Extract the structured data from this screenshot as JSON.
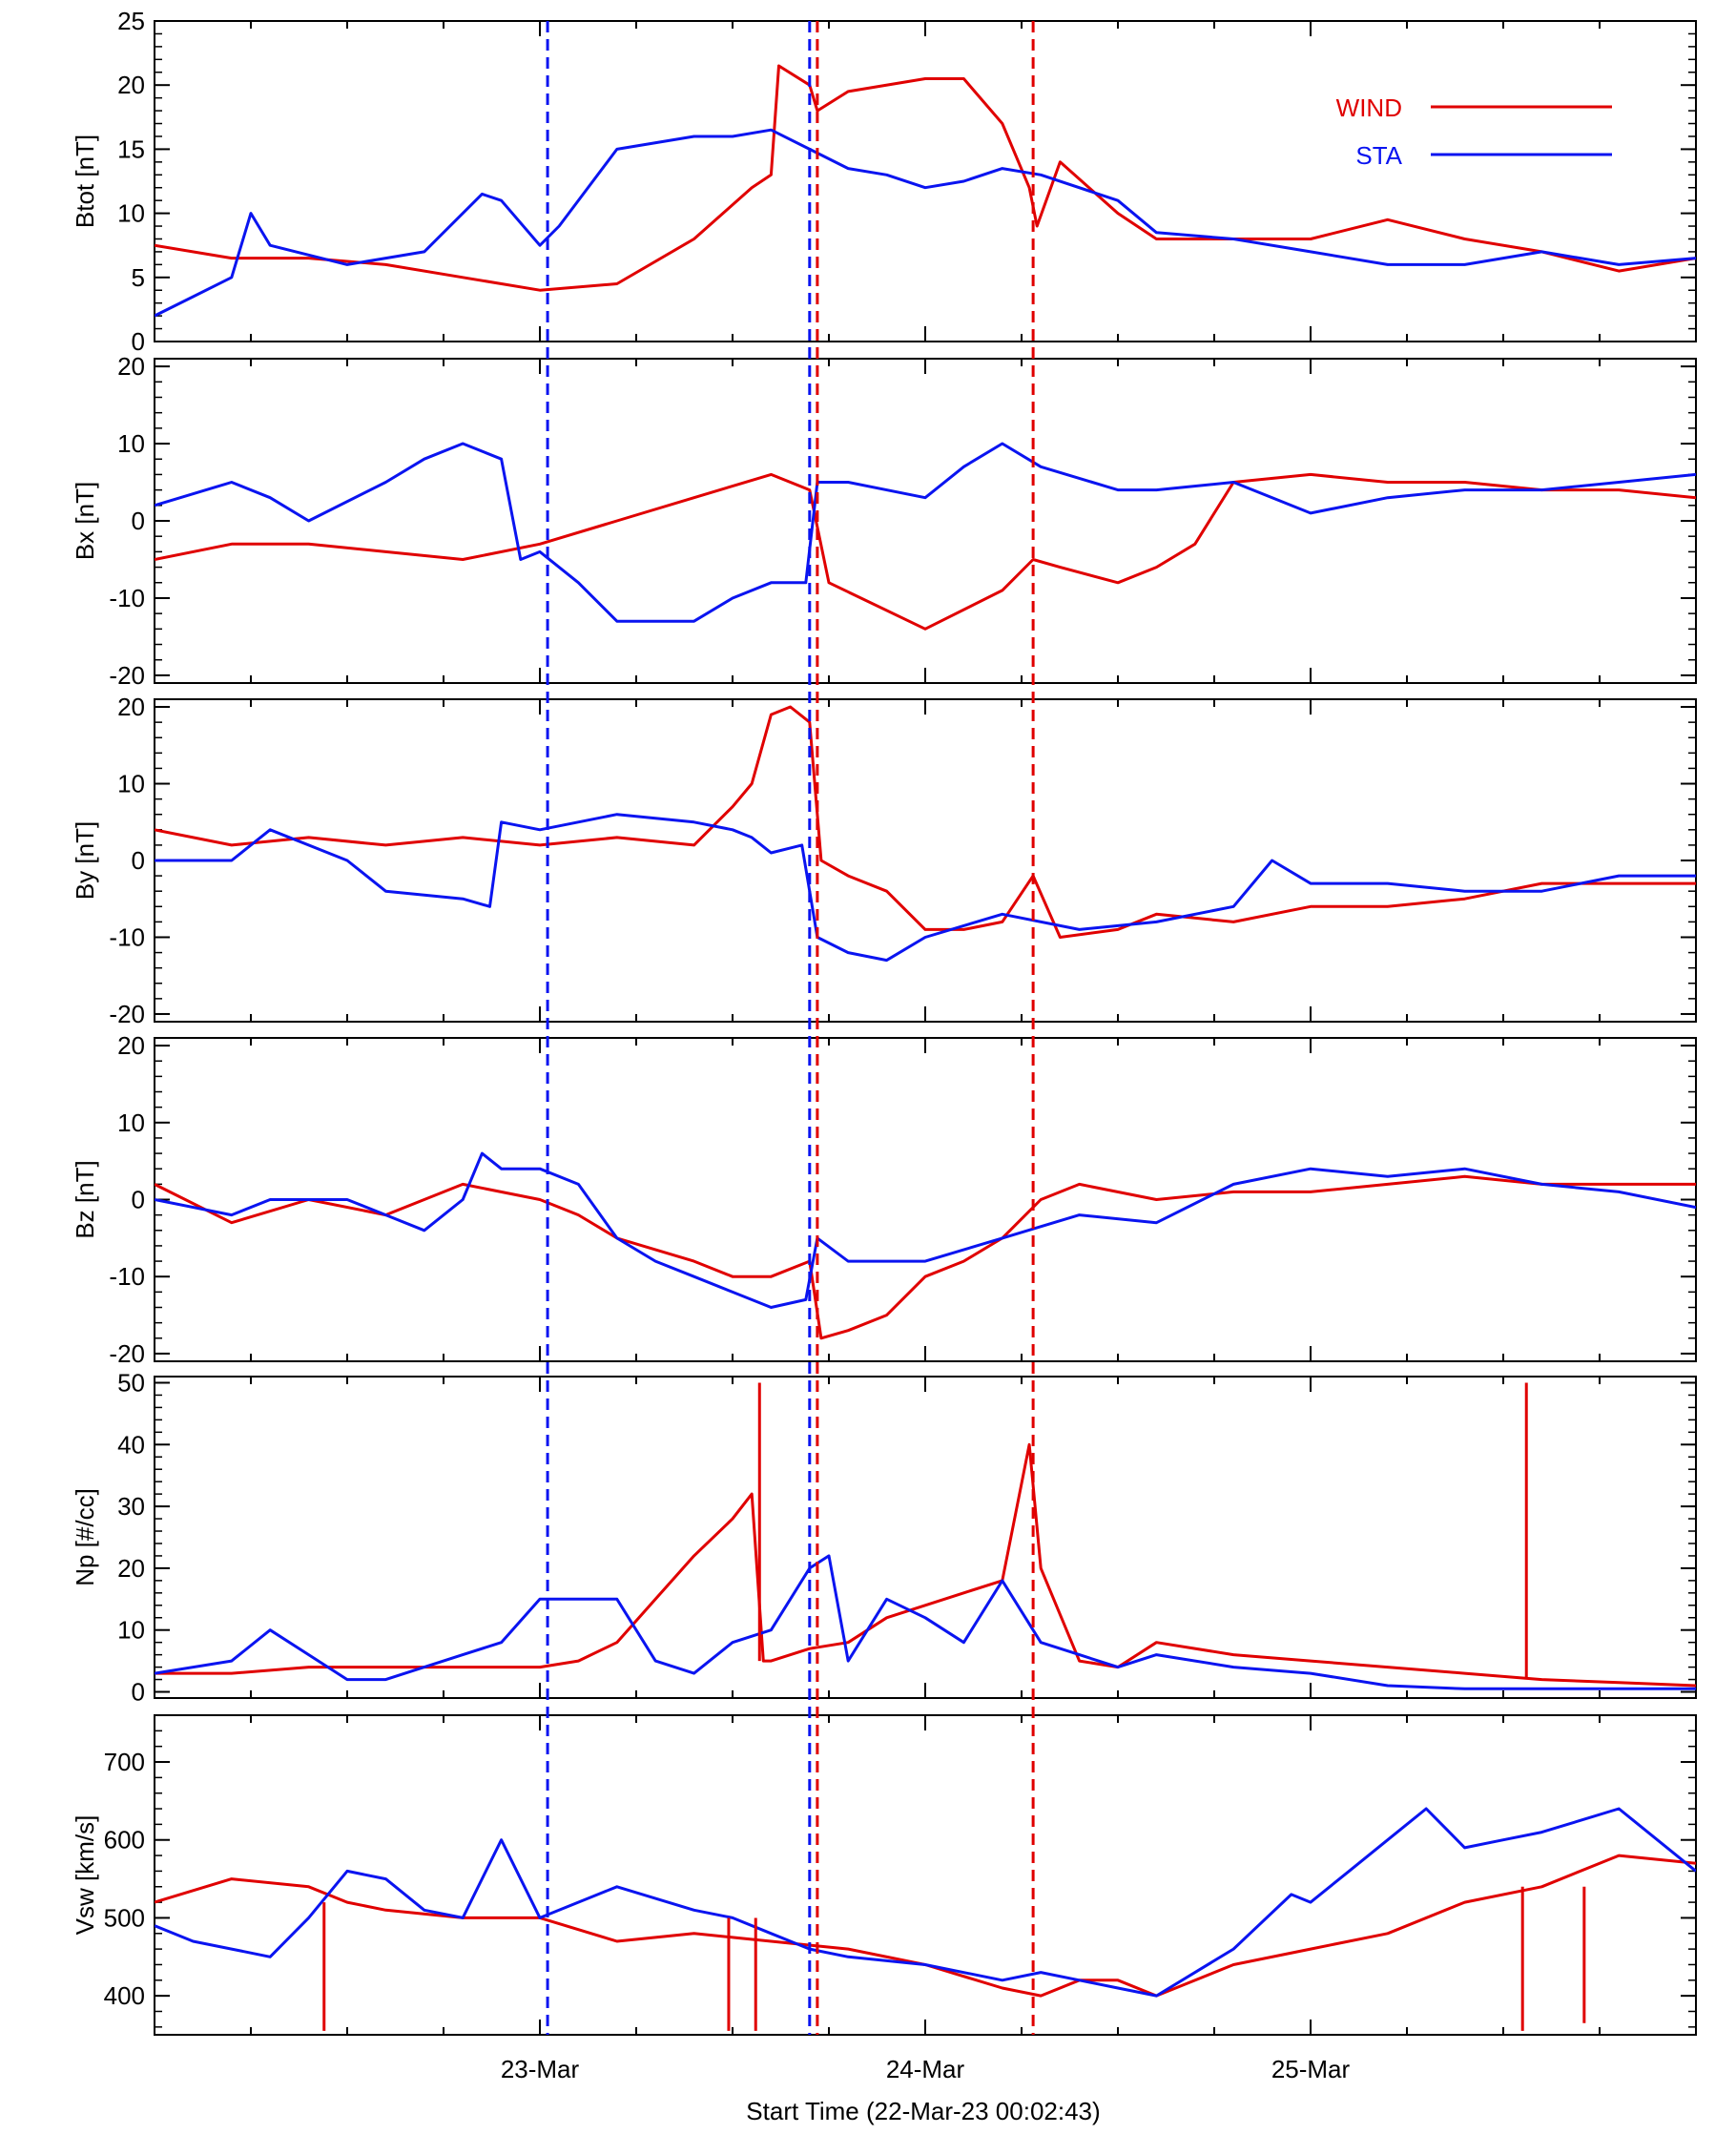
{
  "chart_data": {
    "type": "line",
    "xlabel": "Start Time (22-Mar-23 00:02:43)",
    "x_range_days": [
      0,
      4
    ],
    "x_ticks": [
      {
        "day": 1,
        "label": "23-Mar"
      },
      {
        "day": 2,
        "label": "24-Mar"
      },
      {
        "day": 3,
        "label": "25-Mar"
      }
    ],
    "colors": {
      "WIND": "#e00000",
      "STA": "#0a14f0"
    },
    "legend": {
      "placement": "top-right",
      "entries": [
        {
          "name": "WIND",
          "color": "#e00000"
        },
        {
          "name": "STA",
          "color": "#0a14f0"
        }
      ]
    },
    "boundaries": [
      {
        "day": 1.02,
        "color": "#0a14f0"
      },
      {
        "day": 1.7,
        "color": "#0a14f0"
      },
      {
        "day": 1.72,
        "color": "#e00000"
      },
      {
        "day": 2.28,
        "color": "#e00000"
      }
    ],
    "panels": [
      {
        "id": "btot",
        "ylabel": "Btot [nT]",
        "ylim": [
          0,
          25
        ],
        "yticks": [
          0,
          5,
          10,
          15,
          20,
          25
        ],
        "series": [
          {
            "name": "WIND",
            "x": [
              0,
              0.2,
              0.4,
              0.6,
              0.8,
              1.0,
              1.2,
              1.4,
              1.55,
              1.6,
              1.62,
              1.7,
              1.72,
              1.8,
              2.0,
              2.1,
              2.2,
              2.27,
              2.29,
              2.35,
              2.5,
              2.6,
              2.8,
              3.0,
              3.2,
              3.4,
              3.6,
              3.8,
              4.0
            ],
            "y": [
              7.5,
              6.5,
              6.5,
              6,
              5,
              4,
              4.5,
              8,
              12,
              13,
              21.5,
              20,
              18,
              19.5,
              20.5,
              20.5,
              17,
              12,
              9,
              14,
              10,
              8,
              8,
              8,
              9.5,
              8,
              7,
              5.5,
              6.5
            ]
          },
          {
            "name": "STA",
            "x": [
              0,
              0.1,
              0.2,
              0.25,
              0.3,
              0.5,
              0.7,
              0.85,
              0.9,
              1.0,
              1.05,
              1.2,
              1.4,
              1.5,
              1.6,
              1.7,
              1.8,
              1.9,
              2.0,
              2.1,
              2.2,
              2.3,
              2.5,
              2.6,
              2.8,
              3.0,
              3.2,
              3.4,
              3.6,
              3.8,
              4.0
            ],
            "y": [
              2,
              3.5,
              5,
              10,
              7.5,
              6,
              7,
              11.5,
              11,
              7.5,
              9,
              15,
              16,
              16,
              16.5,
              15,
              13.5,
              13,
              12,
              12.5,
              13.5,
              13,
              11,
              8.5,
              8,
              7,
              6,
              6,
              7,
              6,
              6.5
            ]
          }
        ]
      },
      {
        "id": "bx",
        "ylabel": "Bx [nT]",
        "ylim": [
          -21,
          21
        ],
        "yticks": [
          -20,
          -10,
          0,
          10,
          20
        ],
        "series": [
          {
            "name": "WIND",
            "x": [
              0,
              0.2,
              0.4,
              0.6,
              0.8,
              1.0,
              1.2,
              1.4,
              1.6,
              1.7,
              1.75,
              2.0,
              2.2,
              2.28,
              2.35,
              2.5,
              2.6,
              2.7,
              2.8,
              3.0,
              3.2,
              3.4,
              3.6,
              3.8,
              4.0
            ],
            "y": [
              -5,
              -3,
              -3,
              -4,
              -5,
              -3,
              0,
              3,
              6,
              4,
              -8,
              -14,
              -9,
              -5,
              -6,
              -8,
              -6,
              -3,
              5,
              6,
              5,
              5,
              4,
              4,
              3
            ]
          },
          {
            "name": "STA",
            "x": [
              0,
              0.2,
              0.3,
              0.4,
              0.6,
              0.7,
              0.8,
              0.9,
              0.95,
              1.0,
              1.1,
              1.2,
              1.4,
              1.5,
              1.6,
              1.69,
              1.72,
              1.8,
              2.0,
              2.1,
              2.2,
              2.3,
              2.5,
              2.6,
              2.8,
              3.0,
              3.2,
              3.4,
              3.6,
              3.8,
              4.0
            ],
            "y": [
              2,
              5,
              3,
              0,
              5,
              8,
              10,
              8,
              -5,
              -4,
              -8,
              -13,
              -13,
              -10,
              -8,
              -8,
              5,
              5,
              3,
              7,
              10,
              7,
              4,
              4,
              5,
              1,
              3,
              4,
              4,
              5,
              6
            ]
          }
        ]
      },
      {
        "id": "by",
        "ylabel": "By [nT]",
        "ylim": [
          -21,
          21
        ],
        "yticks": [
          -20,
          -10,
          0,
          10,
          20
        ],
        "series": [
          {
            "name": "WIND",
            "x": [
              0,
              0.2,
              0.4,
              0.6,
              0.8,
              1.0,
              1.2,
              1.4,
              1.5,
              1.55,
              1.6,
              1.65,
              1.7,
              1.73,
              1.8,
              1.9,
              2.0,
              2.1,
              2.2,
              2.28,
              2.35,
              2.5,
              2.6,
              2.8,
              3.0,
              3.2,
              3.4,
              3.6,
              3.8,
              4.0
            ],
            "y": [
              4,
              2,
              3,
              2,
              3,
              2,
              3,
              2,
              7,
              10,
              19,
              20,
              18,
              0,
              -2,
              -4,
              -9,
              -9,
              -8,
              -2,
              -10,
              -9,
              -7,
              -8,
              -6,
              -6,
              -5,
              -3,
              -3,
              -3
            ]
          },
          {
            "name": "STA",
            "x": [
              0,
              0.2,
              0.3,
              0.5,
              0.6,
              0.8,
              0.87,
              0.9,
              1.0,
              1.2,
              1.4,
              1.5,
              1.55,
              1.6,
              1.68,
              1.72,
              1.8,
              1.9,
              2.0,
              2.2,
              2.4,
              2.6,
              2.8,
              2.9,
              3.0,
              3.2,
              3.4,
              3.6,
              3.8,
              4.0
            ],
            "y": [
              0,
              0,
              4,
              0,
              -4,
              -5,
              -6,
              5,
              4,
              6,
              5,
              4,
              3,
              1,
              2,
              -10,
              -12,
              -13,
              -10,
              -7,
              -9,
              -8,
              -6,
              0,
              -3,
              -3,
              -4,
              -4,
              -2,
              -2
            ]
          }
        ]
      },
      {
        "id": "bz",
        "ylabel": "Bz [nT]",
        "ylim": [
          -21,
          21
        ],
        "yticks": [
          -20,
          -10,
          0,
          10,
          20
        ],
        "series": [
          {
            "name": "WIND",
            "x": [
              0,
              0.2,
              0.4,
              0.6,
              0.8,
              1.0,
              1.1,
              1.2,
              1.4,
              1.5,
              1.6,
              1.7,
              1.73,
              1.8,
              1.9,
              2.0,
              2.1,
              2.2,
              2.3,
              2.4,
              2.6,
              2.8,
              3.0,
              3.2,
              3.4,
              3.6,
              3.8,
              4.0
            ],
            "y": [
              2,
              -3,
              0,
              -2,
              2,
              0,
              -2,
              -5,
              -8,
              -10,
              -10,
              -8,
              -18,
              -17,
              -15,
              -10,
              -8,
              -5,
              0,
              2,
              0,
              1,
              1,
              2,
              3,
              2,
              2,
              2
            ]
          },
          {
            "name": "STA",
            "x": [
              0,
              0.2,
              0.3,
              0.5,
              0.6,
              0.7,
              0.8,
              0.85,
              0.9,
              1.0,
              1.1,
              1.2,
              1.3,
              1.4,
              1.5,
              1.6,
              1.69,
              1.72,
              1.8,
              2.0,
              2.2,
              2.4,
              2.6,
              2.8,
              3.0,
              3.2,
              3.4,
              3.6,
              3.8,
              4.0
            ],
            "y": [
              0,
              -2,
              0,
              0,
              -2,
              -4,
              0,
              6,
              4,
              4,
              2,
              -5,
              -8,
              -10,
              -12,
              -14,
              -13,
              -5,
              -8,
              -8,
              -5,
              -2,
              -3,
              2,
              4,
              3,
              4,
              2,
              1,
              -1
            ]
          }
        ]
      },
      {
        "id": "np",
        "ylabel": "Np [#/cc]",
        "ylim": [
          -1,
          51
        ],
        "yticks": [
          0,
          10,
          20,
          30,
          40,
          50
        ],
        "series": [
          {
            "name": "WIND",
            "x": [
              0,
              0.2,
              0.4,
              0.6,
              0.8,
              1.0,
              1.1,
              1.2,
              1.3,
              1.4,
              1.5,
              1.55,
              1.58,
              1.6,
              1.7,
              1.8,
              1.9,
              2.0,
              2.1,
              2.2,
              2.27,
              2.3,
              2.4,
              2.5,
              2.6,
              2.8,
              3.0,
              3.2,
              3.4,
              3.6,
              3.8,
              4.0
            ],
            "y": [
              3,
              3,
              4,
              4,
              4,
              4,
              5,
              8,
              15,
              22,
              28,
              32,
              5,
              5,
              7,
              8,
              12,
              14,
              16,
              18,
              40,
              20,
              5,
              4,
              8,
              6,
              5,
              4,
              3,
              2,
              1.5,
              1
            ]
          },
          {
            "name": "STA",
            "x": [
              0,
              0.2,
              0.3,
              0.4,
              0.5,
              0.6,
              0.7,
              0.8,
              0.9,
              1.0,
              1.2,
              1.3,
              1.4,
              1.5,
              1.6,
              1.7,
              1.75,
              1.8,
              1.9,
              2.0,
              2.1,
              2.2,
              2.3,
              2.4,
              2.5,
              2.6,
              2.8,
              3.0,
              3.2,
              3.4,
              3.6,
              3.8,
              4.0
            ],
            "y": [
              3,
              5,
              10,
              6,
              2,
              2,
              4,
              6,
              8,
              15,
              15,
              5,
              3,
              8,
              10,
              20,
              22,
              5,
              15,
              12,
              8,
              18,
              8,
              6,
              4,
              6,
              4,
              3,
              1,
              0.5,
              0.5,
              0.5,
              0.5
            ]
          }
        ],
        "spikes": [
          {
            "day": 1.57,
            "from": 5,
            "to": 50
          },
          {
            "day": 3.56,
            "from": 2,
            "to": 50
          }
        ]
      },
      {
        "id": "vsw",
        "ylabel": "Vsw [km/s]",
        "ylim": [
          350,
          760
        ],
        "yticks": [
          400,
          500,
          600,
          700
        ],
        "series": [
          {
            "name": "WIND",
            "x": [
              0,
              0.2,
              0.4,
              0.5,
              0.6,
              0.8,
              1.0,
              1.2,
              1.4,
              1.6,
              1.8,
              2.0,
              2.2,
              2.3,
              2.4,
              2.5,
              2.6,
              2.8,
              3.0,
              3.2,
              3.4,
              3.6,
              3.8,
              4.0
            ],
            "y": [
              520,
              550,
              540,
              520,
              510,
              500,
              500,
              470,
              480,
              470,
              460,
              440,
              410,
              400,
              420,
              420,
              400,
              440,
              460,
              480,
              520,
              540,
              580,
              570
            ]
          },
          {
            "name": "STA",
            "x": [
              0,
              0.1,
              0.2,
              0.3,
              0.4,
              0.5,
              0.6,
              0.7,
              0.8,
              0.9,
              1.0,
              1.2,
              1.4,
              1.5,
              1.6,
              1.7,
              1.8,
              2.0,
              2.2,
              2.3,
              2.4,
              2.5,
              2.6,
              2.8,
              2.95,
              3.0,
              3.1,
              3.2,
              3.3,
              3.4,
              3.5,
              3.6,
              3.8,
              4.0
            ],
            "y": [
              490,
              470,
              460,
              450,
              500,
              560,
              550,
              510,
              500,
              600,
              500,
              540,
              510,
              500,
              480,
              460,
              450,
              440,
              420,
              430,
              420,
              410,
              400,
              460,
              530,
              520,
              560,
              600,
              640,
              590,
              600,
              610,
              640,
              560
            ]
          }
        ],
        "spikes": [
          {
            "day": 0.44,
            "from": 520,
            "to": 355
          },
          {
            "day": 1.49,
            "from": 500,
            "to": 355
          },
          {
            "day": 1.56,
            "from": 500,
            "to": 355
          },
          {
            "day": 3.55,
            "from": 540,
            "to": 355
          },
          {
            "day": 3.71,
            "from": 540,
            "to": 365
          }
        ]
      }
    ]
  }
}
